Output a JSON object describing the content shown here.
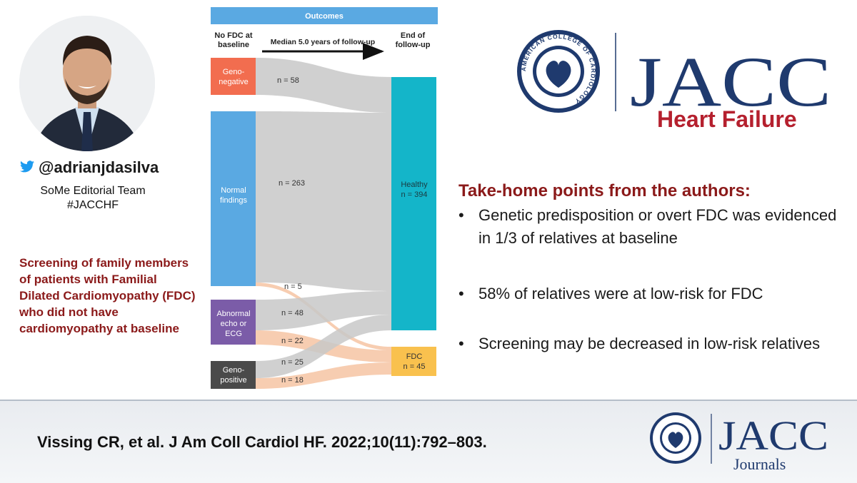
{
  "social": {
    "handle": "@adrianjdasilva",
    "team_line1": "SoMe Editorial Team",
    "team_line2": "#JACCHF"
  },
  "screening_text": "Screening of family members of patients with Familial Dilated Cardiomyopathy (FDC) who did not have cardiomyopathy at baseline",
  "diagram": {
    "header": "Outcomes",
    "col_left": [
      "No FDC at",
      "baseline"
    ],
    "arrow_label": "Median 5.0 years of follow-up",
    "col_right": [
      "End of",
      "follow-up"
    ],
    "nodes": {
      "geno_negative": [
        "Geno-",
        "negative"
      ],
      "normal": [
        "Normal",
        "findings"
      ],
      "abnormal": [
        "Abnormal",
        "echo or",
        "ECG"
      ],
      "geno_positive": [
        "Geno-",
        "positive"
      ],
      "healthy": [
        "Healthy",
        "n = 394"
      ],
      "fdc": [
        "FDC",
        "n = 45"
      ]
    },
    "flows": {
      "f58": "n = 58",
      "f263": "n = 263",
      "f5": "n = 5",
      "f48": "n = 48",
      "f22": "n = 22",
      "f25": "n = 25",
      "f18": "n = 18"
    },
    "colors": {
      "header": "#5aa9e2",
      "geno_negative": "#f26d4f",
      "normal": "#5aa9e2",
      "abnormal": "#7b5ca8",
      "geno_positive": "#4a4a4a",
      "healthy": "#14b5c9",
      "fdc": "#f9c14e"
    }
  },
  "logo": {
    "main": "JACC",
    "sub": "Heart Failure",
    "seal_text": "AMERICAN COLLEGE OF CARDIOLOGY"
  },
  "takehome": {
    "title": "Take-home points from the authors:",
    "bullets": [
      "Genetic predisposition or overt FDC was evidenced in 1/3 of relatives at baseline",
      "58% of relatives were at low-risk for FDC",
      "Screening may be decreased in low-risk relatives"
    ]
  },
  "citation": "Vissing CR, et al. J Am Coll Cardiol HF. 2022;10(11):792–803.",
  "footer_logo": {
    "main": "JACC",
    "sub": "Journals"
  }
}
